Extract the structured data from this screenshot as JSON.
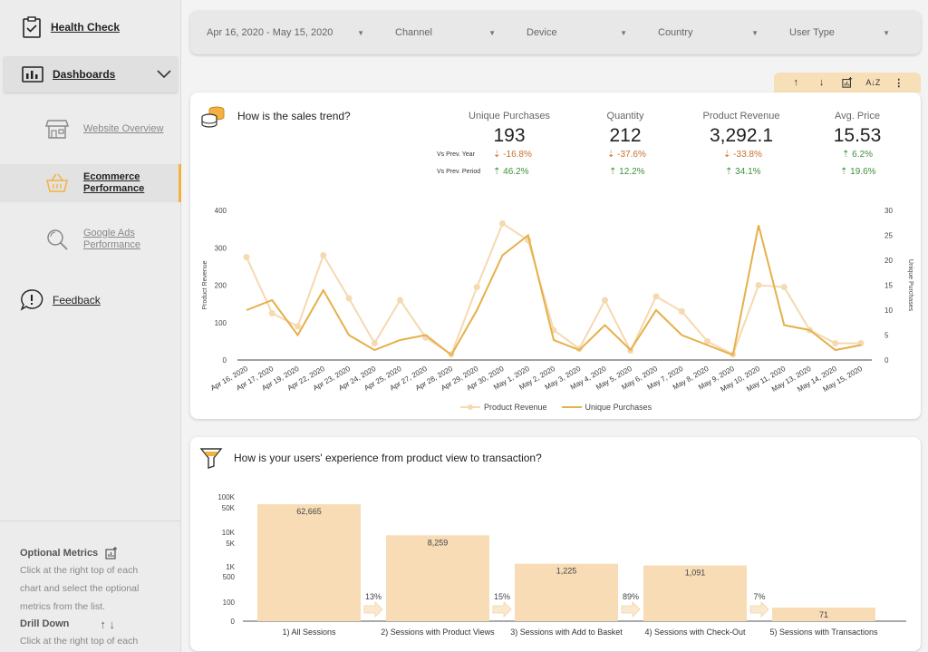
{
  "sidebar": {
    "health_check": "Health Check",
    "dashboards": "Dashboards",
    "items": [
      {
        "label": "Website Overview"
      },
      {
        "label": "Ecommerce Performance"
      },
      {
        "label": "Google Ads Performance"
      }
    ],
    "feedback": "Feedback",
    "help": {
      "optional_title": "Optional Metrics",
      "optional_text": "Click at the right top of each chart and select the optional metrics from the list.",
      "drill_title": "Drill Down",
      "drill_text": "Click at the right top of each"
    }
  },
  "filters": [
    {
      "label": "Apr 16, 2020 - May 15, 2020"
    },
    {
      "label": "Channel"
    },
    {
      "label": "Device"
    },
    {
      "label": "Country"
    },
    {
      "label": "User Type"
    }
  ],
  "sales": {
    "title": "How is the sales trend?",
    "vs_prev_year": "Vs Prev. Year",
    "vs_prev_period": "Vs Prev. Period",
    "kpis": [
      {
        "label": "Unique Purchases",
        "value": "193",
        "year": "-16.8%",
        "period": "46.2%"
      },
      {
        "label": "Quantity",
        "value": "212",
        "year": "-37.6%",
        "period": "12.2%"
      },
      {
        "label": "Product Revenue",
        "value": "3,292.1",
        "year": "-33.8%",
        "period": "34.1%"
      },
      {
        "label": "Avg. Price",
        "value": "15.53",
        "year": "6.2%",
        "period": "19.6%"
      }
    ],
    "legend": [
      "Product Revenue",
      "Unique Purchases"
    ]
  },
  "funnel": {
    "title": "How is your users' experience from product view to transaction?"
  },
  "colors": {
    "accent": "#f3b240",
    "line_light": "#f5d9b0",
    "line_dark": "#e6b04a",
    "bar": "#f8dcb6"
  },
  "chart_data": [
    {
      "type": "line",
      "title": "How is the sales trend?",
      "ylabel": "Product Revenue",
      "y2label": "Unique Purchases",
      "ylim": [
        0,
        400
      ],
      "y2lim": [
        0,
        30
      ],
      "yticks": [
        "0",
        "100",
        "200",
        "300",
        "400"
      ],
      "y2ticks": [
        "0",
        "5",
        "10",
        "15",
        "20",
        "25",
        "30"
      ],
      "x": [
        "Apr 16, 2020",
        "Apr 17, 2020",
        "Apr 19, 2020",
        "Apr 22, 2020",
        "Apr 23, 2020",
        "Apr 24, 2020",
        "Apr 25, 2020",
        "Apr 27, 2020",
        "Apr 28, 2020",
        "Apr 29, 2020",
        "Apr 30, 2020",
        "May 1, 2020",
        "May 2, 2020",
        "May 3, 2020",
        "May 4, 2020",
        "May 5, 2020",
        "May 6, 2020",
        "May 7, 2020",
        "May 8, 2020",
        "May 9, 2020",
        "May 10, 2020",
        "May 11, 2020",
        "May 13, 2020",
        "May 14, 2020",
        "May 15, 2020"
      ],
      "series": [
        {
          "name": "Product Revenue",
          "axis": "left",
          "values": [
            275,
            125,
            90,
            280,
            165,
            45,
            160,
            60,
            15,
            195,
            365,
            320,
            80,
            30,
            160,
            25,
            170,
            130,
            50,
            15,
            200,
            195,
            80,
            45,
            45
          ]
        },
        {
          "name": "Unique Purchases",
          "axis": "right",
          "values": [
            10,
            12,
            5,
            14,
            5,
            2,
            4,
            5,
            1,
            10,
            21,
            25,
            4,
            2,
            7,
            2,
            10,
            5,
            3,
            1,
            27,
            7,
            6,
            2,
            3
          ]
        }
      ]
    },
    {
      "type": "bar",
      "title": "How is your users' experience from product view to transaction?",
      "yscale": "log",
      "yticks": [
        "0",
        "100",
        "500",
        "1K",
        "5K",
        "10K",
        "50K",
        "100K"
      ],
      "categories": [
        "1) All Sessions",
        "2) Sessions with Product Views",
        "3) Sessions with Add to Basket",
        "4) Sessions with Check-Out",
        "5) Sessions with Transactions"
      ],
      "values": [
        62665,
        8259,
        1225,
        1091,
        71
      ],
      "value_labels": [
        "62,665",
        "8,259",
        "1,225",
        "1,091",
        "71"
      ],
      "conversion_rates": [
        "13%",
        "15%",
        "89%",
        "7%"
      ]
    }
  ]
}
